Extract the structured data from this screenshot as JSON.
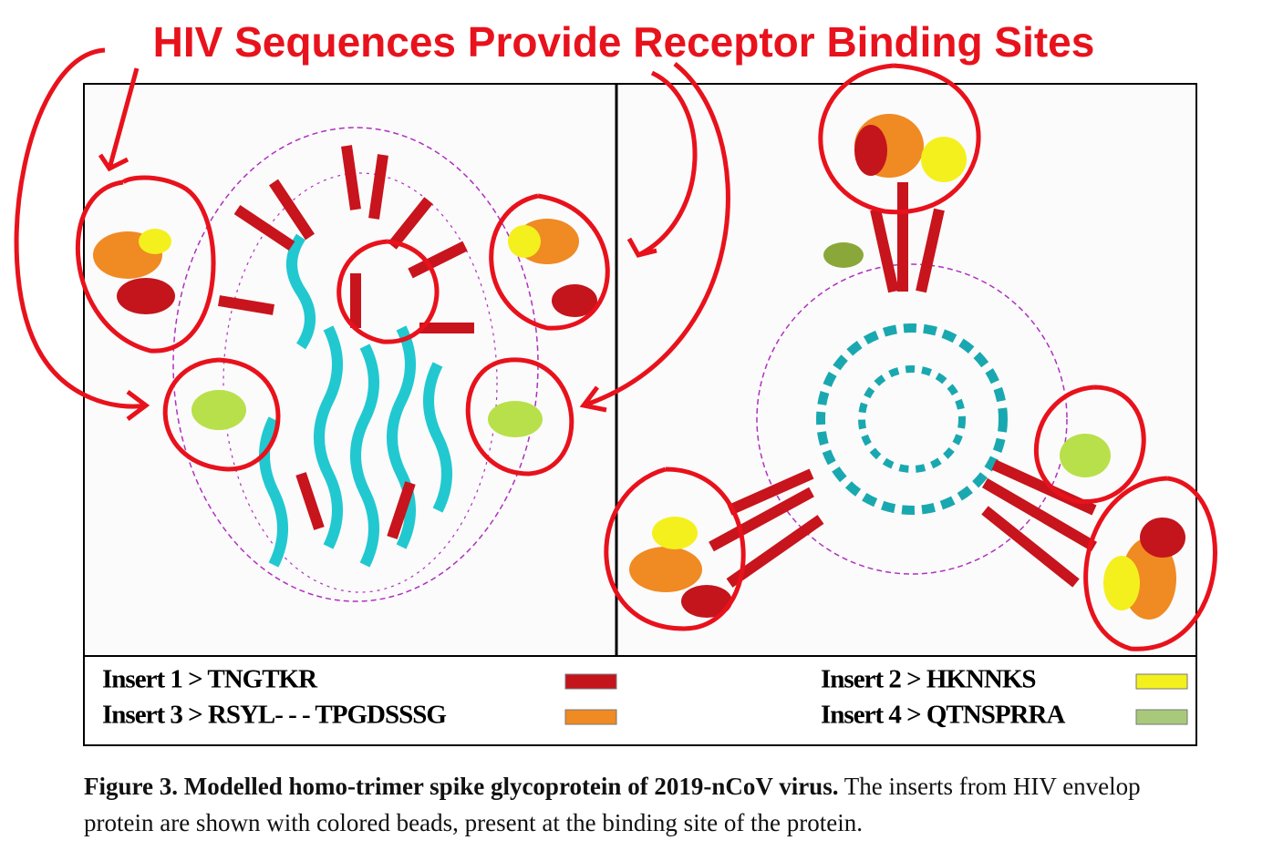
{
  "annotation": {
    "title": "HIV Sequences Provide Receptor Binding Sites"
  },
  "legend": {
    "items": [
      {
        "label": "Insert 1 > TNGTKR",
        "color": "#c4141c"
      },
      {
        "label": "Insert 3 > RSYL- - - TPGDSSSG",
        "color": "#f08a22"
      },
      {
        "label": "Insert 2 > HKNNKS",
        "color": "#f4f01e"
      },
      {
        "label": "Insert 4 > QTNSPRRA",
        "color": "#a9c97a"
      }
    ]
  },
  "caption": {
    "label": "Figure 3. Modelled homo-trimer spike glycoprotein of 2019-nCoV virus.",
    "text": "The inserts from HIV envelop protein are shown with colored beads, present at the binding site of the protein."
  }
}
